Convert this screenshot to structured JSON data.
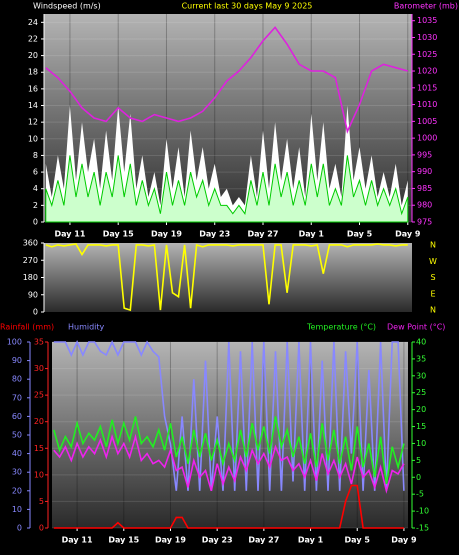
{
  "chart_data": [
    {
      "type": "line",
      "title": "Current last 30 days May 9 2025",
      "ylabel": "Windspeed (m/s)",
      "y2label": "Barometer (mb)",
      "title_color": "#ffff00",
      "ycolor": "#ffffff",
      "y2color": "#ff33ff",
      "grid": true,
      "xlim": [
        8.85,
        39.35
      ],
      "xticks": [
        {
          "value": 11,
          "label": "Day 11"
        },
        {
          "value": 15,
          "label": "Day 15"
        },
        {
          "value": 19,
          "label": "Day 19"
        },
        {
          "value": 23,
          "label": "Day 23"
        },
        {
          "value": 27,
          "label": "Day 27"
        },
        {
          "value": 31,
          "label": "Day 1"
        },
        {
          "value": 35,
          "label": "Day 5"
        },
        {
          "value": 39,
          "label": "Day 9"
        }
      ],
      "ylim": [
        0,
        25
      ],
      "yticks": [
        0,
        2,
        4,
        6,
        8,
        10,
        12,
        14,
        16,
        18,
        20,
        22,
        24
      ],
      "y2lim": [
        975,
        1037
      ],
      "y2ticks": [
        975,
        980,
        985,
        990,
        995,
        1000,
        1005,
        1010,
        1015,
        1020,
        1025,
        1030,
        1035
      ],
      "x": [
        9,
        9.5,
        10,
        10.5,
        11,
        11.5,
        12,
        12.5,
        13,
        13.5,
        14,
        14.5,
        15,
        15.5,
        16,
        16.5,
        17,
        17.5,
        18,
        18.5,
        19,
        19.5,
        20,
        20.5,
        21,
        21.5,
        22,
        22.5,
        23,
        23.5,
        24,
        24.5,
        25,
        25.5,
        26,
        26.5,
        27,
        27.5,
        28,
        28.5,
        29,
        29.5,
        30,
        30.5,
        31,
        31.5,
        32,
        32.5,
        33,
        33.5,
        34,
        34.5,
        35,
        35.5,
        36,
        36.5,
        37,
        37.5,
        38,
        38.5,
        39
      ],
      "series": [
        {
          "color": "#ffffff",
          "fill": true,
          "values": [
            7,
            3,
            8,
            4,
            14,
            5,
            12,
            6,
            10,
            4,
            11,
            5,
            14,
            6,
            13,
            4,
            8,
            3,
            6,
            2,
            10,
            4,
            9,
            3,
            11,
            5,
            9,
            4,
            7,
            3,
            4,
            2,
            3,
            2,
            8,
            3,
            11,
            4,
            12,
            5,
            10,
            4,
            9,
            3,
            13,
            5,
            12,
            4,
            7,
            3,
            14,
            5,
            9,
            4,
            8,
            3,
            6,
            3,
            7,
            2,
            5
          ]
        },
        {
          "color": "#ccffcc",
          "line_color": "#00cc00",
          "fill": true,
          "values": [
            4,
            2,
            5,
            2,
            8,
            3,
            7,
            3,
            6,
            2,
            6,
            3,
            8,
            3,
            7,
            2,
            5,
            2,
            4,
            1,
            6,
            2,
            5,
            2,
            6,
            3,
            5,
            2,
            4,
            2,
            2,
            1,
            2,
            1,
            5,
            2,
            6,
            2,
            7,
            3,
            6,
            2,
            5,
            2,
            7,
            3,
            7,
            2,
            4,
            2,
            8,
            3,
            5,
            2,
            5,
            2,
            4,
            2,
            4,
            1,
            3
          ]
        },
        {
          "color": "#dd22dd",
          "axis": "y2",
          "x": [
            9,
            10,
            11,
            12,
            13,
            14,
            15,
            16,
            17,
            18,
            19,
            20,
            21,
            22,
            23,
            24,
            25,
            26,
            27,
            28,
            29,
            30,
            31,
            32,
            33,
            34,
            35,
            36,
            37,
            38,
            39
          ],
          "values": [
            1021,
            1018,
            1014,
            1009,
            1006,
            1005,
            1009,
            1006,
            1005,
            1007,
            1006,
            1005,
            1006,
            1008,
            1012,
            1017,
            1020,
            1024,
            1029,
            1033,
            1028,
            1022,
            1020,
            1020,
            1018,
            1002,
            1010,
            1020,
            1022,
            1021,
            1020
          ]
        }
      ]
    },
    {
      "type": "line",
      "ycolor": "#ffffff",
      "compass": [
        "N",
        "W",
        "S",
        "E",
        "N"
      ],
      "compass_color": "#ffff00",
      "xlim": [
        8.85,
        39.35
      ],
      "ylim": [
        0,
        360
      ],
      "yticks": [
        0,
        90,
        180,
        270,
        360
      ],
      "x": [
        9,
        9.5,
        10,
        10.5,
        11,
        11.5,
        12,
        12.5,
        13,
        13.5,
        14,
        14.5,
        15,
        15.5,
        16,
        16.5,
        17,
        17.5,
        18,
        18.5,
        19,
        19.5,
        20,
        20.5,
        21,
        21.5,
        22,
        22.5,
        23,
        23.5,
        24,
        24.5,
        25,
        25.5,
        26,
        26.5,
        27,
        27.5,
        28,
        28.5,
        29,
        29.5,
        30,
        30.5,
        31,
        31.5,
        32,
        32.5,
        33,
        33.5,
        34,
        34.5,
        35,
        35.5,
        36,
        36.5,
        37,
        37.5,
        38,
        38.5,
        39
      ],
      "series": [
        {
          "color": "#ffff00",
          "values": [
            350,
            340,
            350,
            345,
            350,
            355,
            300,
            350,
            350,
            350,
            345,
            350,
            350,
            20,
            10,
            350,
            350,
            345,
            350,
            10,
            350,
            100,
            80,
            350,
            20,
            350,
            340,
            350,
            350,
            350,
            350,
            345,
            350,
            350,
            350,
            350,
            350,
            40,
            350,
            350,
            100,
            350,
            350,
            350,
            345,
            350,
            200,
            350,
            350,
            350,
            340,
            350,
            350,
            350,
            350,
            355,
            350,
            350,
            345,
            350,
            350
          ]
        }
      ]
    },
    {
      "type": "line",
      "ycolor": "#ff2222",
      "y2color": "#33ff33",
      "y3color": "#8888ff",
      "grid": true,
      "xlim": [
        8.85,
        39.35
      ],
      "xticks": [
        {
          "value": 11,
          "label": "Day 11"
        },
        {
          "value": 15,
          "label": "Day 15"
        },
        {
          "value": 19,
          "label": "Day 19"
        },
        {
          "value": 23,
          "label": "Day 23"
        },
        {
          "value": 27,
          "label": "Day 27"
        },
        {
          "value": 31,
          "label": "Day 1"
        },
        {
          "value": 35,
          "label": "Day 5"
        },
        {
          "value": 39,
          "label": "Day 9"
        }
      ],
      "ylim": [
        0,
        35
      ],
      "yticks": [
        0,
        5,
        10,
        15,
        20,
        25,
        30,
        35
      ],
      "y2lim": [
        -15,
        40
      ],
      "y2ticks": [
        -15,
        -10,
        -5,
        0,
        5,
        10,
        15,
        20,
        25,
        30,
        35,
        40
      ],
      "y3lim": [
        0,
        100
      ],
      "y3ticks": [
        0,
        10,
        20,
        30,
        40,
        50,
        60,
        70,
        80,
        90,
        100
      ],
      "x": [
        9,
        9.5,
        10,
        10.5,
        11,
        11.5,
        12,
        12.5,
        13,
        13.5,
        14,
        14.5,
        15,
        15.5,
        16,
        16.5,
        17,
        17.5,
        18,
        18.5,
        19,
        19.5,
        20,
        20.5,
        21,
        21.5,
        22,
        22.5,
        23,
        23.5,
        24,
        24.5,
        25,
        25.5,
        26,
        26.5,
        27,
        27.5,
        28,
        28.5,
        29,
        29.5,
        30,
        30.5,
        31,
        31.5,
        32,
        32.5,
        33,
        33.5,
        34,
        34.5,
        35,
        35.5,
        36,
        36.5,
        37,
        37.5,
        38,
        38.5,
        39
      ],
      "series": [
        {
          "name": "Rainfall (mm)",
          "color": "#ff0000",
          "values": [
            0,
            0,
            0,
            0,
            0,
            0,
            0,
            0,
            0,
            0,
            0,
            1,
            0,
            0,
            0,
            0,
            0,
            0,
            0,
            0,
            0,
            2,
            2,
            0,
            0,
            0,
            0,
            0,
            0,
            0,
            0,
            0,
            0,
            0,
            0,
            0,
            0,
            0,
            0,
            0,
            0,
            0,
            0,
            0,
            0,
            0,
            0,
            0,
            0,
            0,
            5,
            8,
            8,
            0,
            0,
            0,
            0,
            0,
            0,
            0,
            0
          ]
        },
        {
          "name": "Humidity",
          "color": "#8888ff",
          "axis": "y3",
          "values": [
            100,
            100,
            100,
            93,
            100,
            93,
            100,
            100,
            95,
            93,
            100,
            93,
            100,
            100,
            100,
            93,
            100,
            95,
            92,
            60,
            45,
            20,
            60,
            20,
            80,
            20,
            90,
            20,
            60,
            20,
            100,
            20,
            95,
            20,
            100,
            20,
            100,
            20,
            95,
            20,
            100,
            25,
            100,
            20,
            100,
            20,
            90,
            20,
            100,
            20,
            95,
            40,
            100,
            20,
            85,
            20,
            100,
            20,
            100,
            100,
            20
          ]
        },
        {
          "name": "Temperature (°C)",
          "color": "#22ee22",
          "axis": "y2",
          "values": [
            14,
            8,
            12,
            9,
            16,
            10,
            13,
            11,
            15,
            9,
            17,
            10,
            16,
            11,
            18,
            10,
            12,
            9,
            14,
            8,
            16,
            6,
            12,
            4,
            14,
            6,
            13,
            5,
            11,
            4,
            10,
            5,
            14,
            6,
            16,
            8,
            15,
            7,
            18,
            9,
            14,
            6,
            12,
            4,
            13,
            3,
            16,
            5,
            14,
            4,
            12,
            2,
            15,
            3,
            10,
            0,
            12,
            -2,
            9,
            3,
            10
          ]
        },
        {
          "name": "Dew Point (°C)",
          "color": "#ee22ee",
          "axis": "y2",
          "values": [
            8,
            6,
            9,
            5,
            10,
            6,
            9,
            7,
            11,
            6,
            12,
            7,
            10,
            6,
            12,
            5,
            7,
            4,
            5,
            3,
            8,
            2,
            3,
            -3,
            5,
            0,
            2,
            -4,
            4,
            -2,
            3,
            -1,
            6,
            2,
            8,
            4,
            7,
            3,
            9,
            5,
            6,
            2,
            4,
            0,
            5,
            -1,
            7,
            1,
            5,
            0,
            4,
            -2,
            6,
            0,
            2,
            -3,
            3,
            -4,
            2,
            1,
            4
          ]
        }
      ]
    }
  ]
}
